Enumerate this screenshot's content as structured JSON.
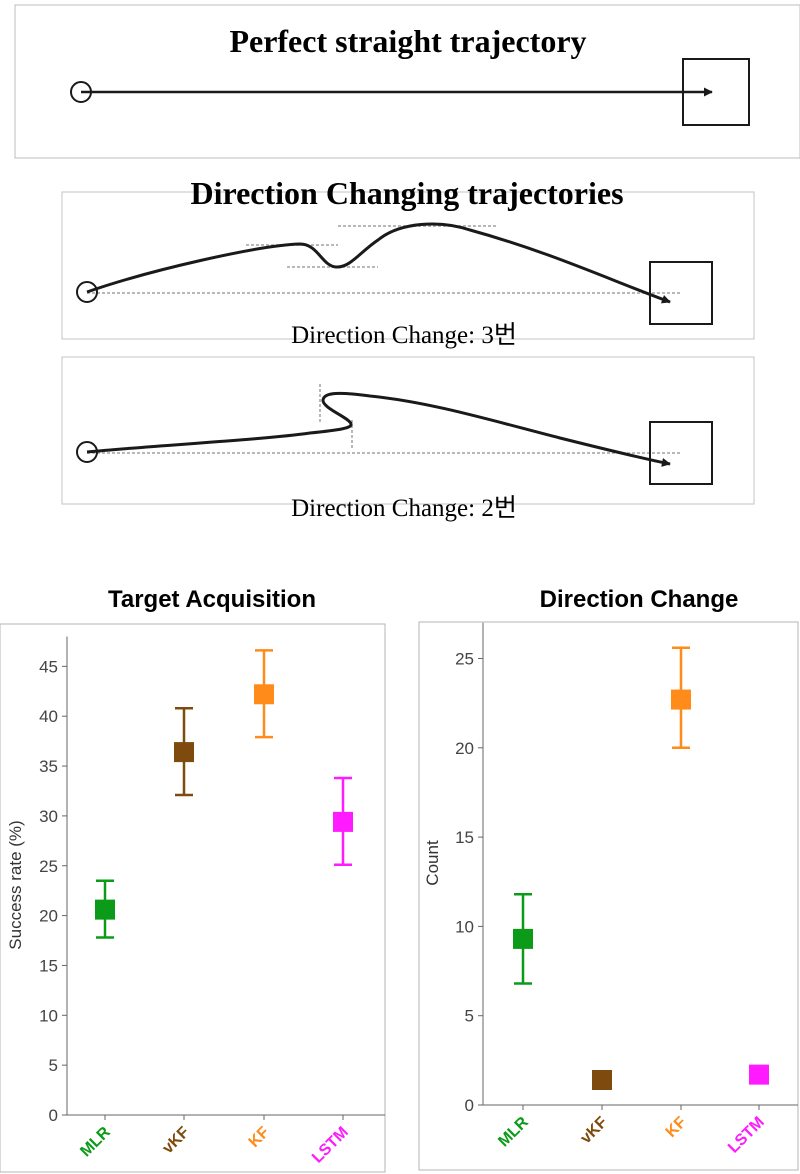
{
  "colors": {
    "MLR": "#0b9b18",
    "vKF": "#7f4a0d",
    "KF": "#ff8c1a",
    "LSTM": "#ff1aff",
    "line": "#1a1a1a"
  },
  "panels": {
    "straight_title": "Perfect straight trajectory",
    "changing_title": "Direction Changing trajectories",
    "caption_1": "Direction Change: 3번",
    "caption_2": "Direction Change: 2번"
  },
  "chart_data": [
    {
      "type": "scatter",
      "title": "Target Acquisition",
      "xlabel": "",
      "ylabel": "Success rate (%)",
      "ylim": [
        0,
        48
      ],
      "yticks": [
        0,
        5,
        10,
        15,
        20,
        25,
        30,
        35,
        40,
        45
      ],
      "categories": [
        "MLR",
        "vKF",
        "KF",
        "LSTM"
      ],
      "values": [
        20.6,
        36.4,
        42.2,
        29.4
      ],
      "error_low": [
        17.8,
        32.1,
        37.9,
        25.1
      ],
      "error_high": [
        23.5,
        40.8,
        46.6,
        33.8
      ]
    },
    {
      "type": "scatter",
      "title": "Direction Change",
      "xlabel": "",
      "ylabel": "Count",
      "ylim": [
        0,
        27
      ],
      "yticks": [
        0,
        5,
        10,
        15,
        20,
        25
      ],
      "categories": [
        "MLR",
        "vKF",
        "KF",
        "LSTM"
      ],
      "values": [
        9.3,
        1.4,
        22.7,
        1.7
      ],
      "error_low": [
        6.8,
        null,
        20.0,
        null
      ],
      "error_high": [
        11.8,
        null,
        25.6,
        null
      ]
    }
  ]
}
